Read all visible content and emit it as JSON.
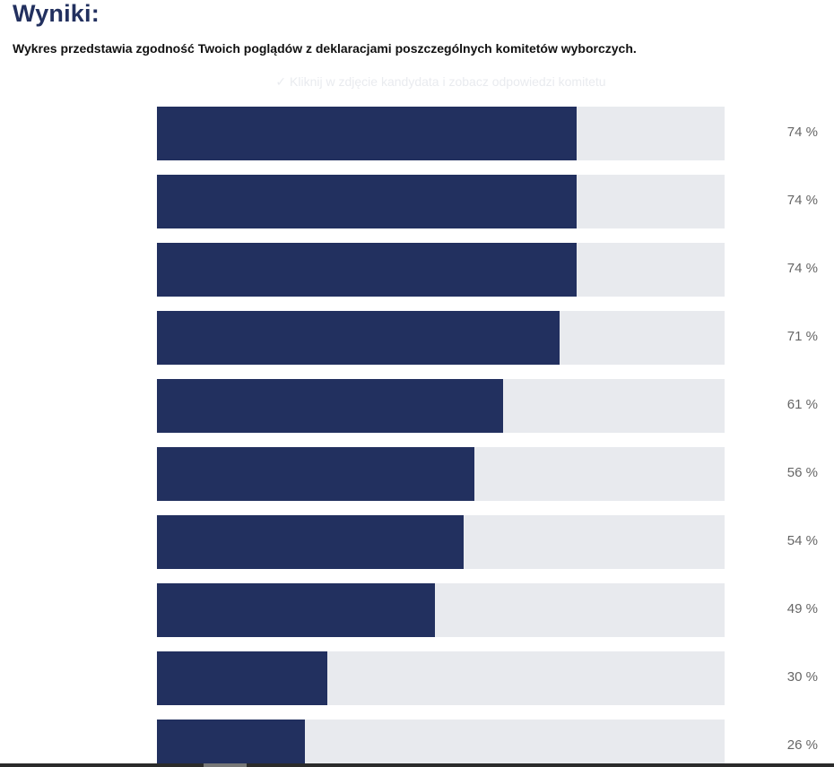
{
  "header": {
    "title": "Wyniki:",
    "subtitle": "Wykres przedstawia zgodność Twoich poglądów z deklaracjami poszczególnych komitetów wyborczych.",
    "hint": "✓ Kliknij w zdjęcie kandydata i zobacz odpowiedzi komitetu"
  },
  "colors": {
    "bar_fill": "#22305f",
    "bar_track": "#e8eaee",
    "title": "#22305f"
  },
  "results": [
    {
      "percent": 74,
      "label": "74 %",
      "avatar": {
        "skin": "#d9a98c",
        "hair": "#7a5a42",
        "suit": "#2a2f45",
        "bg": "#f4f4f4"
      }
    },
    {
      "percent": 74,
      "label": "74 %",
      "avatar": {
        "skin": "#d3a083",
        "hair": "#4a3222",
        "suit": "#1f2433",
        "bg": "#f4f4f4"
      }
    },
    {
      "percent": 74,
      "label": "74 %",
      "avatar": {
        "skin": "#e3bca4",
        "hair": "#3b2a20",
        "suit": "#1e2a45",
        "bg": "#f4f4f4"
      }
    },
    {
      "percent": 71,
      "label": "71 %",
      "avatar": {
        "skin": "#d9ad93",
        "hair": "#2d2520",
        "suit": "#181c28",
        "bg": "#f4f4f4"
      }
    },
    {
      "percent": 61,
      "label": "61 %",
      "avatar": {
        "skin": "#d8a98e",
        "hair": "#2a2420",
        "suit": "#f2f2f2",
        "bg": "#ffffff"
      }
    },
    {
      "percent": 56,
      "label": "56 %",
      "avatar": {
        "skin": "#dcae93",
        "hair": "#1e1a18",
        "suit": "#f0f0f0",
        "bg": "#ffffff"
      }
    },
    {
      "percent": 54,
      "label": "54 %",
      "avatar": {
        "skin": "#e0b29a",
        "hair": "#2b2320",
        "suit": "#1f2a44",
        "bg": "#f4f4f4"
      }
    },
    {
      "percent": 49,
      "label": "49 %",
      "avatar": {
        "skin": "#e1b7a0",
        "hair": "#2d241f",
        "suit": "#1b1f2c",
        "bg": "#f4f4f4"
      }
    },
    {
      "percent": 30,
      "label": "30 %",
      "avatar": {
        "skin": "#dfb39a",
        "hair": "#8a6a4a",
        "suit": "#2a4a78",
        "bg": "#f4f4f4"
      }
    },
    {
      "percent": 26,
      "label": "26 %",
      "avatar": {
        "skin": "#e7c0a8",
        "hair": "#6b4328",
        "suit": "#e8e4de",
        "bg": "#ffffff"
      }
    }
  ]
}
